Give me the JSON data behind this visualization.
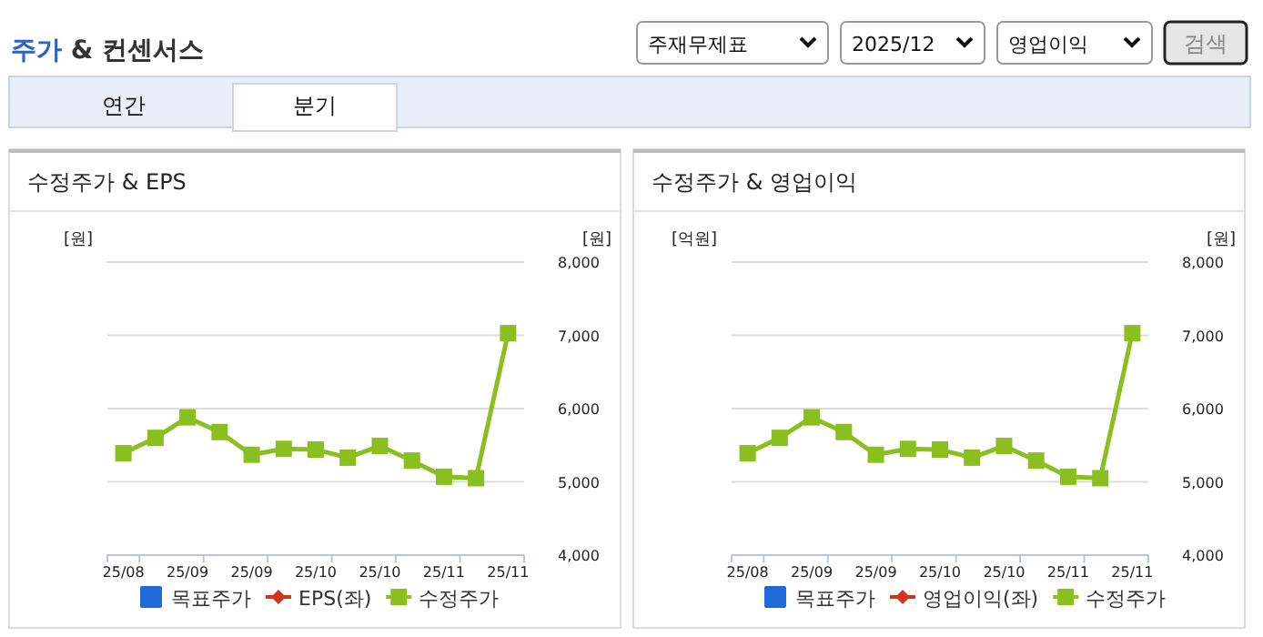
{
  "chart_data": [
    {
      "type": "other",
      "title": "주가 & 컨센서스",
      "annotations": [
        "주재무제표",
        "2025/12",
        "영업이익",
        "검색",
        "연간",
        "분기"
      ]
    },
    {
      "type": "line",
      "title": "수정주가 & EPS",
      "ylabel": "[원]",
      "y2label": "[원]",
      "categories": [
        "25/08",
        null,
        "25/09",
        null,
        "25/09",
        null,
        "25/10",
        null,
        "25/10",
        null,
        "25/11",
        null,
        "25/11"
      ],
      "series": [
        {
          "name": "목표주가",
          "type": "bar",
          "color": "#1f6ad8",
          "values": [
            null,
            null,
            null,
            null,
            null,
            null,
            null,
            null,
            null,
            null,
            null,
            null,
            null
          ]
        },
        {
          "name": "EPS(좌)",
          "color": "#d2361a",
          "marker": "diamond",
          "values": [
            null,
            null,
            null,
            null,
            null,
            null,
            null,
            null,
            null,
            null,
            null,
            null,
            null
          ]
        },
        {
          "name": "수정주가",
          "color": "#8abf1f",
          "marker": "square",
          "axis": "y2",
          "values": [
            5390,
            5600,
            5880,
            5680,
            5370,
            5450,
            5440,
            5330,
            5490,
            5290,
            5070,
            5050,
            7030
          ]
        }
      ],
      "y2lim": [
        4000,
        8000
      ],
      "y2ticks": [
        {
          "value": 4000,
          "label": "4,000"
        },
        {
          "value": 5000,
          "label": "5,000"
        },
        {
          "value": 6000,
          "label": "6,000"
        },
        {
          "value": 7000,
          "label": "7,000"
        },
        {
          "value": 8000,
          "label": "8,000"
        }
      ],
      "grid": "y",
      "legend": "bottom"
    },
    {
      "type": "line",
      "title": "수정주가 & 영업이익",
      "ylabel": "[억원]",
      "y2label": "[원]",
      "categories": [
        "25/08",
        null,
        "25/09",
        null,
        "25/09",
        null,
        "25/10",
        null,
        "25/10",
        null,
        "25/11",
        null,
        "25/11"
      ],
      "series": [
        {
          "name": "목표주가",
          "type": "bar",
          "color": "#1f6ad8",
          "values": [
            null,
            null,
            null,
            null,
            null,
            null,
            null,
            null,
            null,
            null,
            null,
            null,
            null
          ]
        },
        {
          "name": "영업이익(좌)",
          "color": "#d2361a",
          "marker": "diamond",
          "values": [
            null,
            null,
            null,
            null,
            null,
            null,
            null,
            null,
            null,
            null,
            null,
            null,
            null
          ]
        },
        {
          "name": "수정주가",
          "color": "#8abf1f",
          "marker": "square",
          "axis": "y2",
          "values": [
            5390,
            5600,
            5880,
            5680,
            5370,
            5450,
            5440,
            5330,
            5490,
            5290,
            5070,
            5050,
            7030
          ]
        }
      ],
      "y2lim": [
        4000,
        8000
      ],
      "y2ticks": [
        {
          "value": 4000,
          "label": "4,000"
        },
        {
          "value": 5000,
          "label": "5,000"
        },
        {
          "value": 6000,
          "label": "6,000"
        },
        {
          "value": 7000,
          "label": "7,000"
        },
        {
          "value": 8000,
          "label": "8,000"
        }
      ],
      "grid": "y",
      "legend": "bottom"
    }
  ]
}
